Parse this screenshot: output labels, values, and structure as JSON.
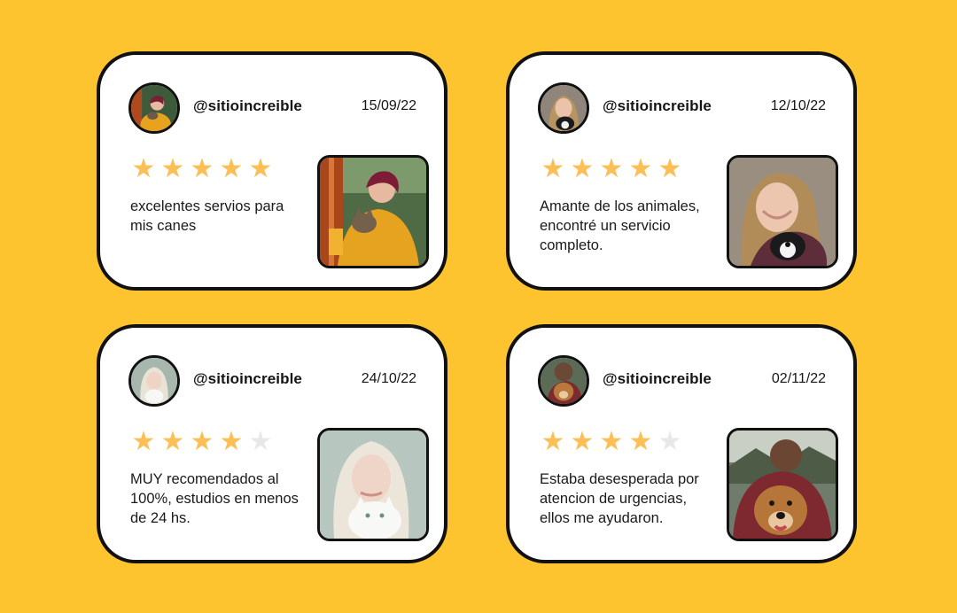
{
  "reviews": [
    {
      "handle": "@sitioincreible",
      "date": "15/09/22",
      "rating": 5,
      "text": "excelentes servios para mis canes",
      "photo": "woman-with-cat-photo"
    },
    {
      "handle": "@sitioincreible",
      "date": "12/10/22",
      "rating": 5,
      "text": "Amante de los animales, encontré un servicio completo.",
      "photo": "woman-with-puppy-photo"
    },
    {
      "handle": "@sitioincreible",
      "date": "24/10/22",
      "rating": 4,
      "text": "MUY recomendados al 100%, estudios en menos de 24 hs.",
      "photo": "blonde-woman-with-white-cat-photo"
    },
    {
      "handle": "@sitioincreible",
      "date": "02/11/22",
      "rating": 4,
      "text": "Estaba desesperada por atencion de urgencias, ellos me ayudaron.",
      "photo": "man-hugging-dog-photo"
    }
  ],
  "colors": {
    "background": "#FEC42F",
    "card": "#FFFFFF",
    "border": "#111111",
    "star_filled": "#FBBF55",
    "star_empty": "#E8E8E8"
  },
  "icons": {
    "star": "star-icon"
  }
}
